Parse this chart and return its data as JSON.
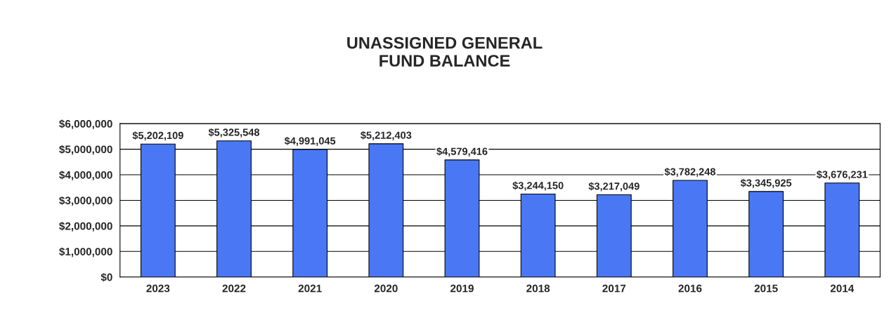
{
  "chart_data": {
    "type": "bar",
    "title": "UNASSIGNED GENERAL\nFUND BALANCE",
    "categories": [
      "2023",
      "2022",
      "2021",
      "2020",
      "2019",
      "2018",
      "2017",
      "2016",
      "2015",
      "2014"
    ],
    "values": [
      5202109,
      5325548,
      4991045,
      5212403,
      4579416,
      3244150,
      3217049,
      3782248,
      3345925,
      3676231
    ],
    "value_labels": [
      "$5,202,109",
      "$5,325,548",
      "$4,991,045",
      "$5,212,403",
      "$4,579,416",
      "$3,244,150",
      "$3,217,049",
      "$3,782,248",
      "$3,345,925",
      "$3,676,231"
    ],
    "color": "#4a78f5",
    "ylim": [
      0,
      6000000
    ],
    "yticks": [
      {
        "value": 0,
        "label": "$0"
      },
      {
        "value": 1000000,
        "label": "$1,000,000"
      },
      {
        "value": 2000000,
        "label": "$2,000,000"
      },
      {
        "value": 3000000,
        "label": "$3,000,000"
      },
      {
        "value": 4000000,
        "label": "$4,000,000"
      },
      {
        "value": 5000000,
        "label": "$5,000,000"
      },
      {
        "value": 6000000,
        "label": "$6,000,000"
      }
    ],
    "grid": "y",
    "legend": false
  }
}
